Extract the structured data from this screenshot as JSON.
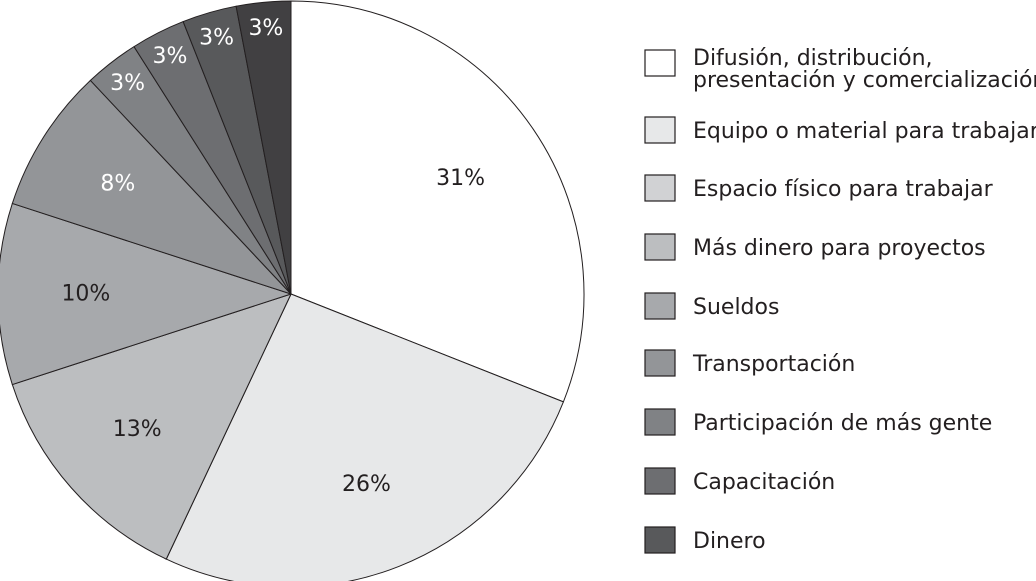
{
  "chart_data": {
    "type": "pie",
    "title": "",
    "legend_position": "right",
    "slices": [
      {
        "label": [
          "Difusión, distribución,",
          "presentación y comercialización"
        ],
        "value": 31,
        "value_label": "31%",
        "color": "#ffffff",
        "label_color": "#231f20"
      },
      {
        "label": [
          "Equipo o material para trabajar"
        ],
        "value": 26,
        "value_label": "26%",
        "color": "#e7e8e9",
        "label_color": "#231f20"
      },
      {
        "label": [
          "Espacio físico para trabajar"
        ],
        "value": 0,
        "value_label": "",
        "color": "#d1d2d4",
        "label_color": "#231f20"
      },
      {
        "label": [
          "Más dinero para proyectos"
        ],
        "value": 13,
        "value_label": "13%",
        "color": "#bcbec0",
        "label_color": "#231f20"
      },
      {
        "label": [
          "Sueldos"
        ],
        "value": 10,
        "value_label": "10%",
        "color": "#a7a9ac",
        "label_color": "#231f20"
      },
      {
        "label": [
          "Transportación"
        ],
        "value": 8,
        "value_label": "8%",
        "color": "#939598",
        "label_color": "#ffffff"
      },
      {
        "label": [
          "Participación de más gente"
        ],
        "value": 3,
        "value_label": "3%",
        "color": "#808285",
        "label_color": "#ffffff"
      },
      {
        "label": [
          "Capacitación"
        ],
        "value": 3,
        "value_label": "3%",
        "color": "#6d6e71",
        "label_color": "#ffffff"
      },
      {
        "label": [
          "Dinero"
        ],
        "value": 3,
        "value_label": "3%",
        "color": "#58595b",
        "label_color": "#ffffff"
      },
      {
        "label": [],
        "value": 3,
        "value_label": "3%",
        "color": "#414042",
        "label_color": "#ffffff",
        "in_legend": false
      }
    ]
  }
}
